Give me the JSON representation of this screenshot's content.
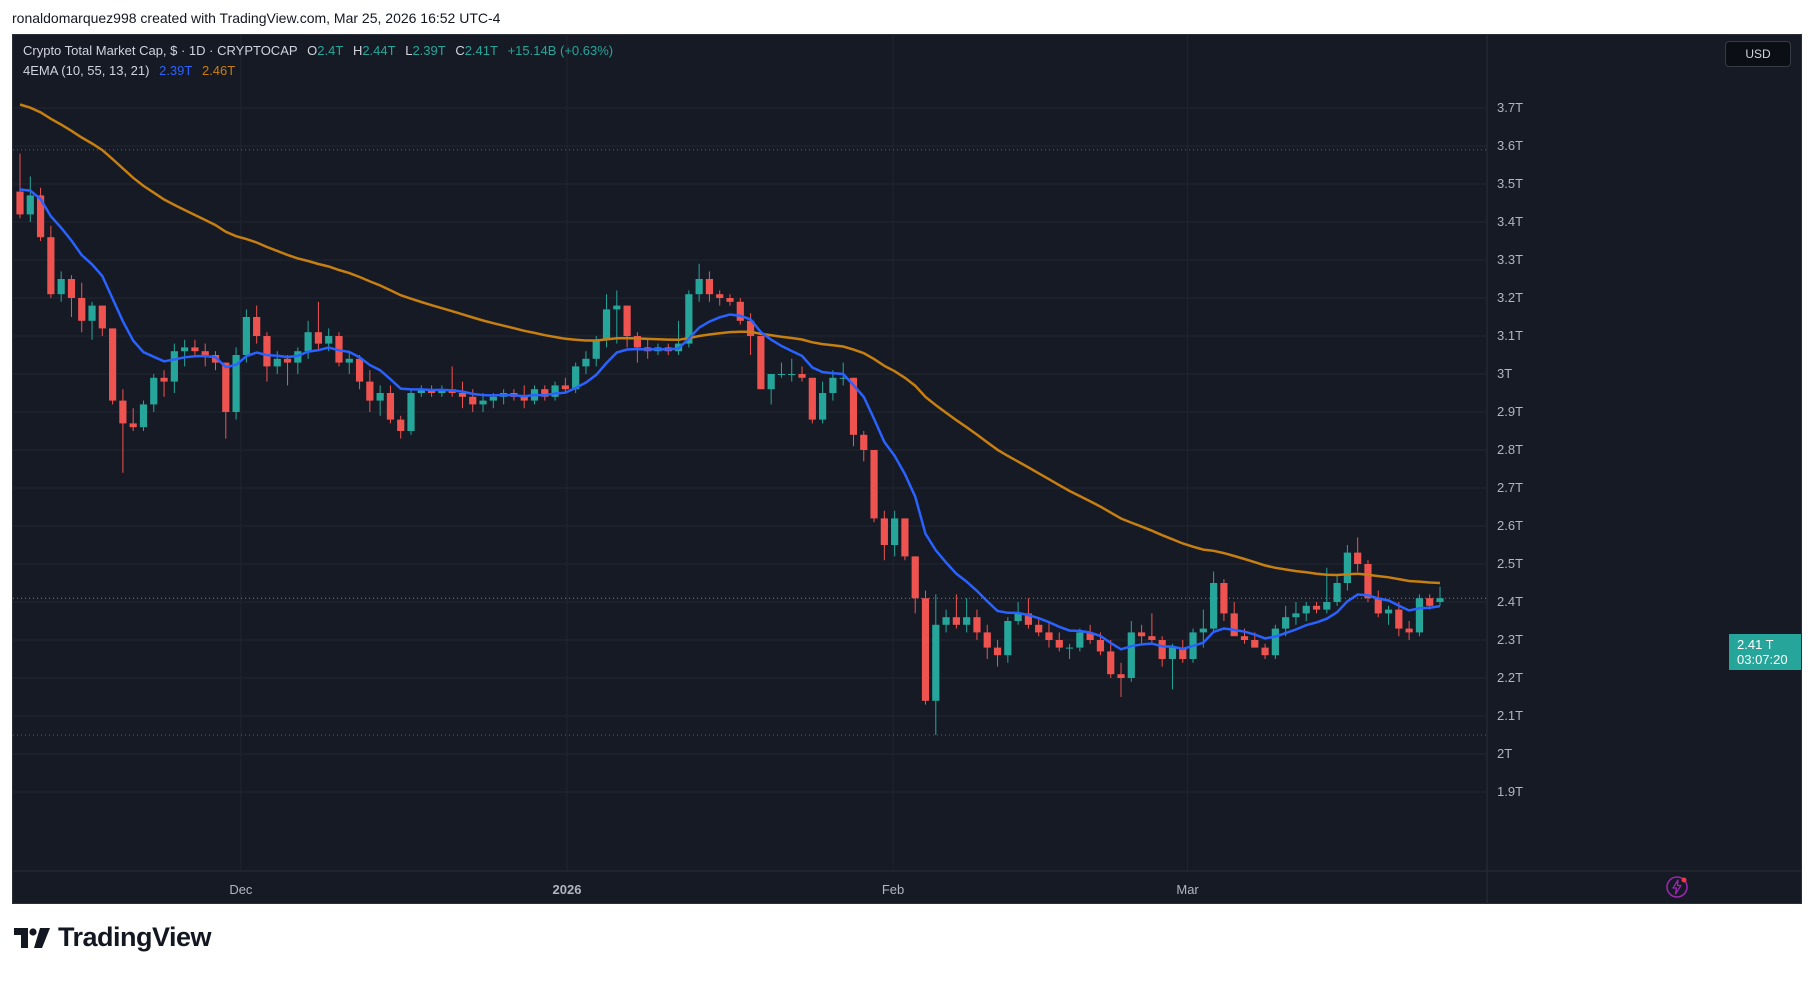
{
  "credit": "ronaldomarquez998 created with TradingView.com, Mar 25, 2026 16:52 UTC-4",
  "legend": {
    "symbol": "Crypto Total Market Cap, $ · 1D · CRYPTOCAP",
    "ohlc": [
      {
        "k": "O",
        "v": "2.4T"
      },
      {
        "k": "H",
        "v": "2.44T"
      },
      {
        "k": "L",
        "v": "2.39T"
      },
      {
        "k": "C",
        "v": "2.41T"
      }
    ],
    "change": "+15.14B (+0.63%)",
    "indicator": "4EMA (10, 55, 13, 21)",
    "ema_fast": "2.39T",
    "ema_slow": "2.46T"
  },
  "currency": "USD",
  "price_label": {
    "price": "2.41 T",
    "countdown": "03:07:20"
  },
  "brand": "TradingView",
  "colors": {
    "up": "#26a69a",
    "down": "#ef5350",
    "ema_fast": "#2962ff",
    "ema_slow": "#c67f10",
    "background": "#161a25"
  },
  "icons": [
    "tradingview-logo-icon",
    "flash-icon"
  ],
  "chart_data": {
    "type": "candlestick",
    "y_axis": {
      "ticks": [
        "1.9T",
        "2T",
        "2.1T",
        "2.2T",
        "2.3T",
        "2.4T",
        "2.5T",
        "2.6T",
        "2.7T",
        "2.8T",
        "2.9T",
        "3T",
        "3.1T",
        "3.2T",
        "3.3T",
        "3.4T",
        "3.5T",
        "3.6T",
        "3.7T"
      ],
      "range": [
        1.9,
        3.7
      ],
      "unit": "T",
      "side": "right"
    },
    "x_axis": {
      "labels": [
        {
          "text": "Dec",
          "date": "2025-12-01"
        },
        {
          "text": "2026",
          "date": "2026-01-01"
        },
        {
          "text": "Feb",
          "date": "2026-02-01"
        },
        {
          "text": "Mar",
          "date": "2026-03-01"
        }
      ],
      "range": [
        "2025-11-10",
        "2026-03-25"
      ]
    },
    "last_close": 2.41,
    "reference_lines": [
      3.59,
      2.05
    ],
    "candles": [
      [
        3.48,
        3.58,
        3.41,
        3.42
      ],
      [
        3.42,
        3.52,
        3.4,
        3.47
      ],
      [
        3.47,
        3.49,
        3.35,
        3.36
      ],
      [
        3.36,
        3.39,
        3.2,
        3.21
      ],
      [
        3.21,
        3.27,
        3.19,
        3.25
      ],
      [
        3.25,
        3.26,
        3.15,
        3.2
      ],
      [
        3.2,
        3.24,
        3.11,
        3.14
      ],
      [
        3.14,
        3.19,
        3.09,
        3.18
      ],
      [
        3.18,
        3.18,
        3.1,
        3.12
      ],
      [
        3.12,
        3.12,
        2.92,
        2.93
      ],
      [
        2.93,
        2.96,
        2.74,
        2.87
      ],
      [
        2.87,
        2.91,
        2.85,
        2.86
      ],
      [
        2.86,
        2.93,
        2.85,
        2.92
      ],
      [
        2.92,
        3.0,
        2.9,
        2.99
      ],
      [
        2.99,
        3.01,
        2.94,
        2.98
      ],
      [
        2.98,
        3.08,
        2.95,
        3.06
      ],
      [
        3.06,
        3.09,
        3.02,
        3.07
      ],
      [
        3.07,
        3.09,
        3.05,
        3.06
      ],
      [
        3.06,
        3.08,
        3.02,
        3.05
      ],
      [
        3.05,
        3.06,
        3.01,
        3.03
      ],
      [
        3.03,
        3.03,
        2.83,
        2.9
      ],
      [
        2.9,
        3.07,
        2.88,
        3.05
      ],
      [
        3.05,
        3.17,
        3.03,
        3.15
      ],
      [
        3.15,
        3.18,
        3.08,
        3.1
      ],
      [
        3.1,
        3.11,
        2.98,
        3.02
      ],
      [
        3.02,
        3.06,
        3.0,
        3.04
      ],
      [
        3.04,
        3.05,
        2.97,
        3.03
      ],
      [
        3.03,
        3.07,
        3.0,
        3.06
      ],
      [
        3.06,
        3.14,
        3.04,
        3.11
      ],
      [
        3.11,
        3.19,
        3.06,
        3.08
      ],
      [
        3.08,
        3.12,
        3.06,
        3.1
      ],
      [
        3.1,
        3.11,
        3.02,
        3.03
      ],
      [
        3.03,
        3.06,
        3.0,
        3.04
      ],
      [
        3.04,
        3.05,
        2.96,
        2.98
      ],
      [
        2.98,
        3.01,
        2.9,
        2.93
      ],
      [
        2.93,
        2.97,
        2.89,
        2.95
      ],
      [
        2.95,
        2.97,
        2.87,
        2.88
      ],
      [
        2.88,
        2.89,
        2.83,
        2.85
      ],
      [
        2.85,
        2.96,
        2.84,
        2.95
      ],
      [
        2.95,
        2.97,
        2.94,
        2.96
      ],
      [
        2.96,
        2.97,
        2.94,
        2.95
      ],
      [
        2.95,
        2.97,
        2.94,
        2.96
      ],
      [
        2.96,
        3.02,
        2.94,
        2.95
      ],
      [
        2.95,
        2.98,
        2.91,
        2.94
      ],
      [
        2.94,
        2.96,
        2.9,
        2.92
      ],
      [
        2.92,
        2.95,
        2.9,
        2.93
      ],
      [
        2.93,
        2.95,
        2.91,
        2.94
      ],
      [
        2.94,
        2.96,
        2.92,
        2.95
      ],
      [
        2.95,
        2.96,
        2.93,
        2.94
      ],
      [
        2.94,
        2.97,
        2.91,
        2.93
      ],
      [
        2.93,
        2.97,
        2.92,
        2.96
      ],
      [
        2.96,
        2.97,
        2.93,
        2.94
      ],
      [
        2.94,
        2.98,
        2.93,
        2.97
      ],
      [
        2.97,
        2.99,
        2.95,
        2.96
      ],
      [
        2.96,
        3.03,
        2.95,
        3.02
      ],
      [
        3.02,
        3.06,
        3.0,
        3.04
      ],
      [
        3.04,
        3.1,
        3.02,
        3.09
      ],
      [
        3.09,
        3.21,
        3.07,
        3.17
      ],
      [
        3.17,
        3.22,
        3.08,
        3.18
      ],
      [
        3.18,
        3.18,
        3.07,
        3.1
      ],
      [
        3.1,
        3.11,
        3.03,
        3.07
      ],
      [
        3.07,
        3.09,
        3.04,
        3.06
      ],
      [
        3.06,
        3.08,
        3.05,
        3.07
      ],
      [
        3.07,
        3.08,
        3.05,
        3.06
      ],
      [
        3.06,
        3.14,
        3.05,
        3.08
      ],
      [
        3.08,
        3.22,
        3.07,
        3.21
      ],
      [
        3.21,
        3.29,
        3.19,
        3.25
      ],
      [
        3.25,
        3.27,
        3.19,
        3.21
      ],
      [
        3.21,
        3.22,
        3.18,
        3.2
      ],
      [
        3.2,
        3.21,
        3.18,
        3.19
      ],
      [
        3.19,
        3.2,
        3.13,
        3.14
      ],
      [
        3.14,
        3.16,
        3.05,
        3.1
      ],
      [
        3.1,
        3.1,
        2.96,
        2.96
      ],
      [
        2.96,
        3.0,
        2.92,
        3.0
      ],
      [
        3.0,
        3.03,
        2.99,
        3.0
      ],
      [
        3.0,
        3.04,
        2.98,
        3.0
      ],
      [
        3.0,
        3.02,
        2.98,
        2.99
      ],
      [
        2.99,
        2.99,
        2.87,
        2.88
      ],
      [
        2.88,
        2.98,
        2.87,
        2.95
      ],
      [
        2.95,
        3.01,
        2.93,
        2.99
      ],
      [
        2.99,
        3.03,
        2.97,
        2.99
      ],
      [
        2.99,
        2.99,
        2.81,
        2.84
      ],
      [
        2.84,
        2.85,
        2.77,
        2.8
      ],
      [
        2.8,
        2.8,
        2.61,
        2.62
      ],
      [
        2.62,
        2.64,
        2.51,
        2.55
      ],
      [
        2.55,
        2.64,
        2.52,
        2.62
      ],
      [
        2.62,
        2.62,
        2.51,
        2.52
      ],
      [
        2.52,
        2.52,
        2.37,
        2.41
      ],
      [
        2.41,
        2.43,
        2.13,
        2.14
      ],
      [
        2.14,
        2.42,
        2.05,
        2.34
      ],
      [
        2.34,
        2.38,
        2.32,
        2.36
      ],
      [
        2.36,
        2.42,
        2.33,
        2.34
      ],
      [
        2.34,
        2.41,
        2.32,
        2.36
      ],
      [
        2.36,
        2.38,
        2.3,
        2.32
      ],
      [
        2.32,
        2.34,
        2.25,
        2.28
      ],
      [
        2.28,
        2.3,
        2.23,
        2.26
      ],
      [
        2.26,
        2.36,
        2.24,
        2.35
      ],
      [
        2.35,
        2.4,
        2.34,
        2.37
      ],
      [
        2.37,
        2.41,
        2.33,
        2.34
      ],
      [
        2.34,
        2.36,
        2.31,
        2.32
      ],
      [
        2.32,
        2.35,
        2.28,
        2.3
      ],
      [
        2.3,
        2.32,
        2.27,
        2.28
      ],
      [
        2.28,
        2.29,
        2.25,
        2.28
      ],
      [
        2.28,
        2.33,
        2.27,
        2.32
      ],
      [
        2.32,
        2.34,
        2.29,
        2.3
      ],
      [
        2.3,
        2.32,
        2.26,
        2.27
      ],
      [
        2.27,
        2.3,
        2.2,
        2.21
      ],
      [
        2.21,
        2.24,
        2.15,
        2.2
      ],
      [
        2.2,
        2.35,
        2.19,
        2.32
      ],
      [
        2.32,
        2.34,
        2.29,
        2.31
      ],
      [
        2.31,
        2.37,
        2.29,
        2.3
      ],
      [
        2.3,
        2.31,
        2.23,
        2.25
      ],
      [
        2.25,
        2.29,
        2.17,
        2.28
      ],
      [
        2.28,
        2.3,
        2.24,
        2.25
      ],
      [
        2.25,
        2.33,
        2.24,
        2.32
      ],
      [
        2.32,
        2.38,
        2.28,
        2.33
      ],
      [
        2.33,
        2.48,
        2.32,
        2.45
      ],
      [
        2.45,
        2.46,
        2.35,
        2.37
      ],
      [
        2.37,
        2.4,
        2.32,
        2.31
      ],
      [
        2.31,
        2.33,
        2.29,
        2.3
      ],
      [
        2.3,
        2.32,
        2.28,
        2.28
      ],
      [
        2.28,
        2.29,
        2.25,
        2.26
      ],
      [
        2.26,
        2.34,
        2.25,
        2.33
      ],
      [
        2.33,
        2.39,
        2.31,
        2.36
      ],
      [
        2.36,
        2.4,
        2.34,
        2.37
      ],
      [
        2.37,
        2.4,
        2.35,
        2.39
      ],
      [
        2.39,
        2.4,
        2.37,
        2.38
      ],
      [
        2.38,
        2.49,
        2.37,
        2.4
      ],
      [
        2.4,
        2.47,
        2.39,
        2.45
      ],
      [
        2.45,
        2.55,
        2.43,
        2.53
      ],
      [
        2.53,
        2.57,
        2.48,
        2.5
      ],
      [
        2.5,
        2.51,
        2.4,
        2.41
      ],
      [
        2.41,
        2.43,
        2.36,
        2.37
      ],
      [
        2.37,
        2.39,
        2.34,
        2.38
      ],
      [
        2.38,
        2.4,
        2.31,
        2.33
      ],
      [
        2.33,
        2.35,
        2.3,
        2.32
      ],
      [
        2.32,
        2.42,
        2.31,
        2.41
      ],
      [
        2.41,
        2.42,
        2.38,
        2.39
      ],
      [
        2.4,
        2.44,
        2.39,
        2.41
      ]
    ],
    "ema_fast_label": "2.39T",
    "ema_slow_label": "2.46T"
  }
}
